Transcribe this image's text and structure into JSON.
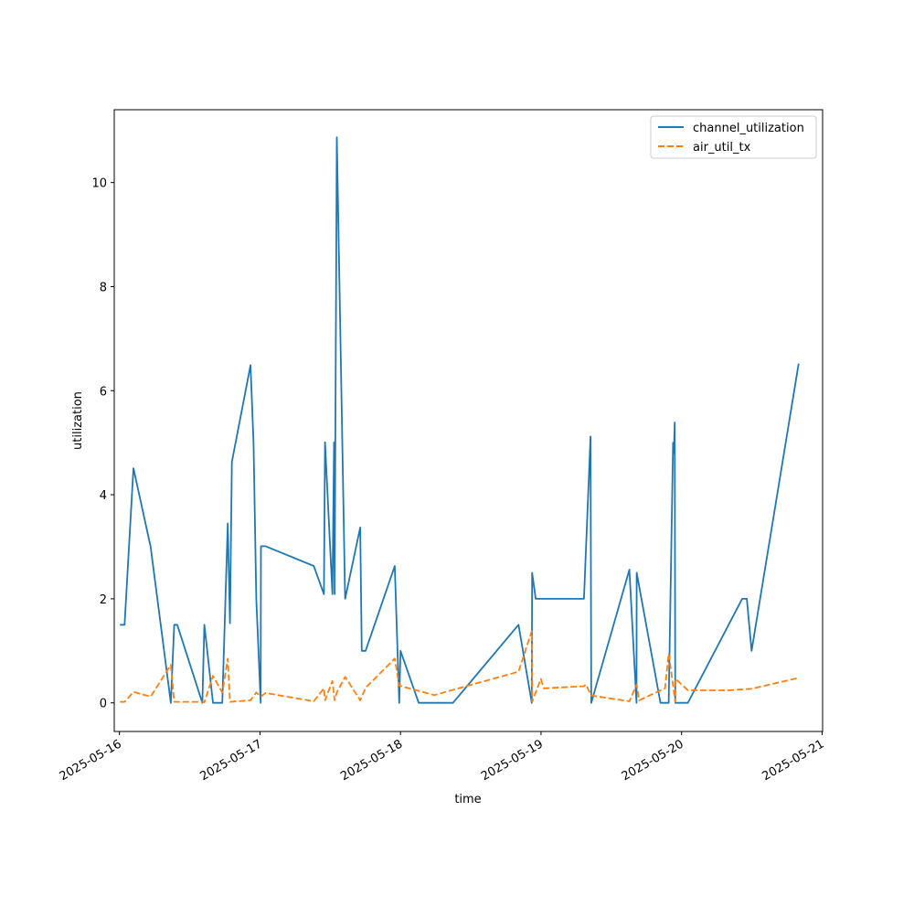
{
  "chart_data": {
    "type": "line",
    "title": "",
    "xlabel": "time",
    "ylabel": "utilization",
    "x_ticks": [
      "2025-05-16",
      "2025-05-17",
      "2025-05-18",
      "2025-05-19",
      "2025-05-20",
      "2025-05-21"
    ],
    "y_ticks": [
      0,
      2,
      4,
      6,
      8,
      10
    ],
    "xlim": [
      "2025-05-15 23:07",
      "2025-05-21 00:05"
    ],
    "ylim": [
      -0.55,
      11.4
    ],
    "grid": false,
    "legend_position": "top-right",
    "series": [
      {
        "name": "channel_utilization",
        "color": "#1f77b4",
        "dash": "solid",
        "points": [
          [
            "2025-05-16 00:05",
            1.5
          ],
          [
            "2025-05-16 00:53",
            1.5
          ],
          [
            "2025-05-16 02:24",
            4.51
          ],
          [
            "2025-05-16 05:20",
            3.0
          ],
          [
            "2025-05-16 08:47",
            0.0
          ],
          [
            "2025-05-16 09:21",
            1.5
          ],
          [
            "2025-05-16 09:52",
            1.5
          ],
          [
            "2025-05-16 14:10",
            0.0
          ],
          [
            "2025-05-16 14:30",
            1.5
          ],
          [
            "2025-05-16 15:58",
            0.0
          ],
          [
            "2025-05-16 17:34",
            0.0
          ],
          [
            "2025-05-16 18:30",
            3.45
          ],
          [
            "2025-05-16 18:53",
            1.53
          ],
          [
            "2025-05-16 19:12",
            4.63
          ],
          [
            "2025-05-16 22:23",
            6.49
          ],
          [
            "2025-05-16 22:54",
            5.0
          ],
          [
            "2025-05-16 23:22",
            2.0
          ],
          [
            "2025-05-17 00:07",
            0.0
          ],
          [
            "2025-05-17 00:10",
            3.01
          ],
          [
            "2025-05-17 00:58",
            3.01
          ],
          [
            "2025-05-17 09:11",
            2.63
          ],
          [
            "2025-05-17 10:55",
            2.09
          ],
          [
            "2025-05-17 11:07",
            5.01
          ],
          [
            "2025-05-17 12:22",
            2.09
          ],
          [
            "2025-05-17 12:39",
            5.01
          ],
          [
            "2025-05-17 12:45",
            2.09
          ],
          [
            "2025-05-17 13:07",
            10.87
          ],
          [
            "2025-05-17 14:33",
            2.0
          ],
          [
            "2025-05-17 17:07",
            3.37
          ],
          [
            "2025-05-17 17:23",
            1.0
          ],
          [
            "2025-05-17 18:02",
            1.0
          ],
          [
            "2025-05-17 23:01",
            2.63
          ],
          [
            "2025-05-17 23:47",
            0.0
          ],
          [
            "2025-05-18 00:00",
            1.0
          ],
          [
            "2025-05-18 03:07",
            0.0
          ],
          [
            "2025-05-18 08:58",
            0.0
          ],
          [
            "2025-05-18 20:09",
            1.5
          ],
          [
            "2025-05-18 22:25",
            0.0
          ],
          [
            "2025-05-18 22:29",
            2.5
          ],
          [
            "2025-05-18 23:05",
            2.0
          ],
          [
            "2025-05-19 07:20",
            2.0
          ],
          [
            "2025-05-19 08:27",
            5.12
          ],
          [
            "2025-05-19 08:35",
            0.0
          ],
          [
            "2025-05-19 15:05",
            2.56
          ],
          [
            "2025-05-19 16:18",
            0.0
          ],
          [
            "2025-05-19 16:20",
            2.5
          ],
          [
            "2025-05-19 20:24",
            0.0
          ],
          [
            "2025-05-19 21:48",
            0.0
          ],
          [
            "2025-05-19 22:33",
            5.0
          ],
          [
            "2025-05-19 22:41",
            4.8
          ],
          [
            "2025-05-19 22:50",
            5.39
          ],
          [
            "2025-05-19 22:55",
            0.0
          ],
          [
            "2025-05-20 01:05",
            0.0
          ],
          [
            "2025-05-20 10:21",
            2.0
          ],
          [
            "2025-05-20 11:09",
            2.0
          ],
          [
            "2025-05-20 11:57",
            1.0
          ],
          [
            "2025-05-20 20:00",
            6.52
          ]
        ]
      },
      {
        "name": "air_util_tx",
        "color": "#ff7f0e",
        "dash": "dashed",
        "points": [
          [
            "2025-05-16 00:05",
            0.02
          ],
          [
            "2025-05-16 00:53",
            0.02
          ],
          [
            "2025-05-16 02:24",
            0.21
          ],
          [
            "2025-05-16 05:20",
            0.12
          ],
          [
            "2025-05-16 08:47",
            0.73
          ],
          [
            "2025-05-16 09:21",
            0.02
          ],
          [
            "2025-05-16 14:10",
            0.02
          ],
          [
            "2025-05-16 14:30",
            0.01
          ],
          [
            "2025-05-16 15:58",
            0.52
          ],
          [
            "2025-05-16 17:34",
            0.2
          ],
          [
            "2025-05-16 18:30",
            0.85
          ],
          [
            "2025-05-16 18:53",
            0.02
          ],
          [
            "2025-05-16 22:23",
            0.05
          ],
          [
            "2025-05-16 23:22",
            0.2
          ],
          [
            "2025-05-17 00:07",
            0.12
          ],
          [
            "2025-05-17 00:58",
            0.19
          ],
          [
            "2025-05-17 09:11",
            0.03
          ],
          [
            "2025-05-17 10:55",
            0.28
          ],
          [
            "2025-05-17 11:07",
            0.05
          ],
          [
            "2025-05-17 12:22",
            0.42
          ],
          [
            "2025-05-17 12:45",
            0.05
          ],
          [
            "2025-05-17 13:07",
            0.2
          ],
          [
            "2025-05-17 14:33",
            0.5
          ],
          [
            "2025-05-17 17:07",
            0.05
          ],
          [
            "2025-05-17 18:02",
            0.29
          ],
          [
            "2025-05-17 23:01",
            0.85
          ],
          [
            "2025-05-17 23:47",
            0.33
          ],
          [
            "2025-05-18 05:45",
            0.15
          ],
          [
            "2025-05-18 20:09",
            0.6
          ],
          [
            "2025-05-18 22:25",
            1.38
          ],
          [
            "2025-05-18 22:29",
            0.02
          ],
          [
            "2025-05-18 23:58",
            0.46
          ],
          [
            "2025-05-19 00:30",
            0.28
          ],
          [
            "2025-05-19 07:20",
            0.32
          ],
          [
            "2025-05-19 07:40",
            0.35
          ],
          [
            "2025-05-19 08:35",
            0.14
          ],
          [
            "2025-05-19 15:05",
            0.03
          ],
          [
            "2025-05-19 16:20",
            0.35
          ],
          [
            "2025-05-19 16:45",
            0.05
          ],
          [
            "2025-05-19 21:10",
            0.28
          ],
          [
            "2025-05-19 21:48",
            0.95
          ],
          [
            "2025-05-19 22:55",
            0.02
          ],
          [
            "2025-05-19 23:00",
            0.46
          ],
          [
            "2025-05-20 01:05",
            0.24
          ],
          [
            "2025-05-20 08:00",
            0.24
          ],
          [
            "2025-05-20 11:57",
            0.27
          ],
          [
            "2025-05-20 20:00",
            0.48
          ]
        ]
      }
    ]
  }
}
